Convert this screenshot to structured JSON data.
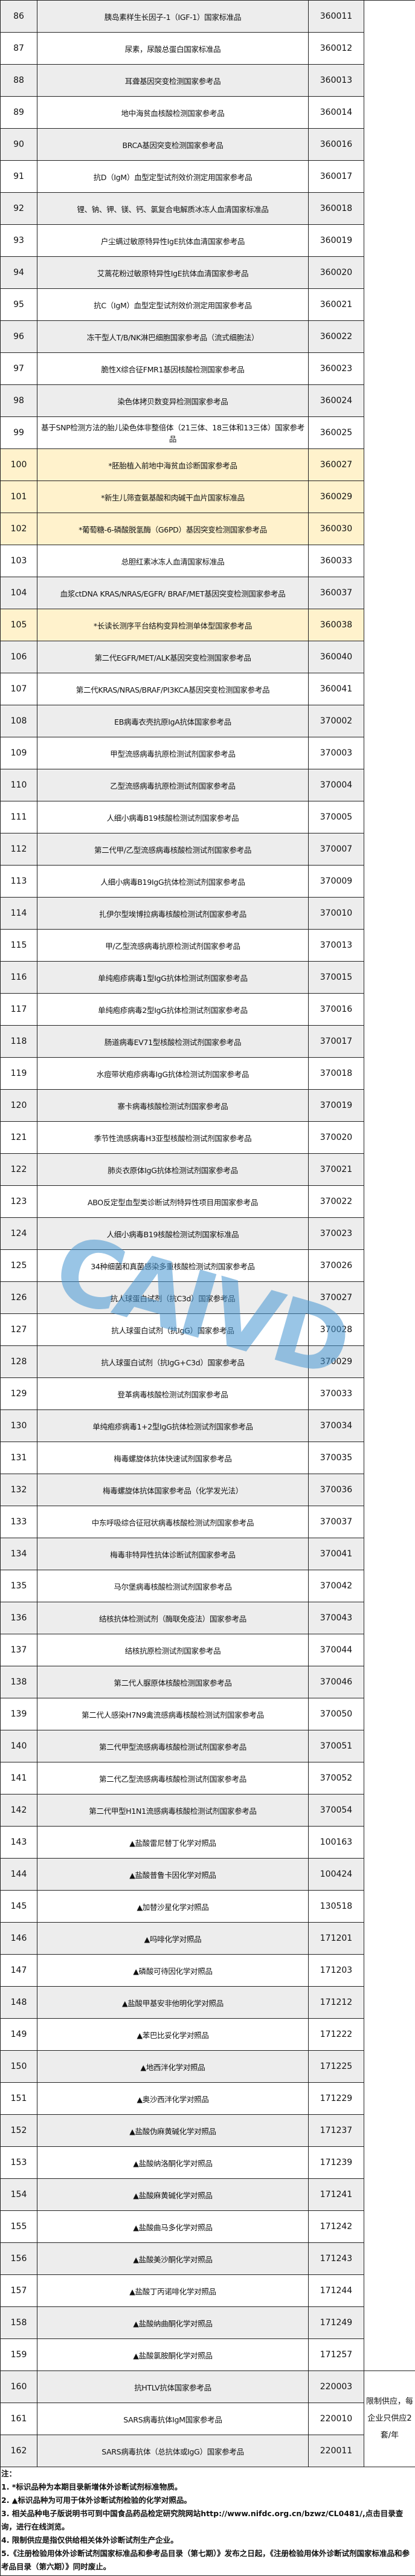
{
  "table": {
    "rows": [
      {
        "no": "86",
        "name": "胰岛素样生长因子-1（IGF-1）国家标准品",
        "code": "360011"
      },
      {
        "no": "87",
        "name": "尿素，尿酸总蛋白国家标准品",
        "code": "360012"
      },
      {
        "no": "88",
        "name": "耳聋基因突变检测国家参考品",
        "code": "360013"
      },
      {
        "no": "89",
        "name": "地中海贫血核酸检测国家参考品",
        "code": "360014"
      },
      {
        "no": "90",
        "name": "BRCA基因突变检测国家参考品",
        "code": "360016"
      },
      {
        "no": "91",
        "name": "抗D（IgM）血型定型试剂效价测定用国家参考品",
        "code": "360017"
      },
      {
        "no": "92",
        "name": "锂、钠、钾、镁、钙、氯复合电解质冰冻人血清国家标准品",
        "code": "360018"
      },
      {
        "no": "93",
        "name": "户尘螨过敏原特异性IgE抗体血清国家参考品",
        "code": "360019"
      },
      {
        "no": "94",
        "name": "艾蒿花粉过敏原特异性IgE抗体血清国家参考品",
        "code": "360020"
      },
      {
        "no": "95",
        "name": "抗C（IgM）血型定型试剂效价测定用国家参考品",
        "code": "360021"
      },
      {
        "no": "96",
        "name": "冻干型人T/B/NK淋巴细胞国家参考品（流式细胞法）",
        "code": "360022"
      },
      {
        "no": "97",
        "name": "脆性X综合征FMR1基因核酸检测国家参考品",
        "code": "360023"
      },
      {
        "no": "98",
        "name": "染色体拷贝数变异检测国家参考品",
        "code": "360024"
      },
      {
        "no": "99",
        "name": "基于SNP检测方法的胎儿染色体非整倍体（21三体、18三体和13三体）国家参考品",
        "code": "360025"
      },
      {
        "no": "100",
        "name": "*胚胎植入前地中海贫血诊断国家参考品",
        "code": "360027",
        "highlight": true
      },
      {
        "no": "101",
        "name": "*新生儿筛查氨基酸和肉碱干血片国家标准品",
        "code": "360029",
        "highlight": true
      },
      {
        "no": "102",
        "name": "*葡萄糖-6-磷酸脱氢酶（G6PD）基因突变检测国家参考品",
        "code": "360030",
        "highlight": true
      },
      {
        "no": "103",
        "name": "总胆红素冰冻人血清国家标准品",
        "code": "360033"
      },
      {
        "no": "104",
        "name": "血浆ctDNA KRAS/NRAS/EGFR/ BRAF/MET基因突变检测国家参考品",
        "code": "360037"
      },
      {
        "no": "105",
        "name": "*长读长测序平台结构变异检测单体型国家参考品",
        "code": "360038",
        "highlight": true
      },
      {
        "no": "106",
        "name": "第二代EGFR/MET/ALK基因突变检测国家参考品",
        "code": "360040"
      },
      {
        "no": "107",
        "name": "第二代KRAS/NRAS/BRAF/PI3KCA基因突变检测国家参考品",
        "code": "360041"
      },
      {
        "no": "108",
        "name": "EB病毒衣壳抗原IgA抗体国家参考品",
        "code": "370002"
      },
      {
        "no": "109",
        "name": "甲型流感病毒抗原检测试剂国家参考品",
        "code": "370003"
      },
      {
        "no": "110",
        "name": "乙型流感病毒抗原检测试剂国家参考品",
        "code": "370004"
      },
      {
        "no": "111",
        "name": "人细小病毒B19核酸检测试剂国家参考品",
        "code": "370005"
      },
      {
        "no": "112",
        "name": "第二代甲/乙型流感病毒核酸检测试剂国家参考品",
        "code": "370007"
      },
      {
        "no": "113",
        "name": "人细小病毒B19IgG抗体检测试剂国家参考品",
        "code": "370009"
      },
      {
        "no": "114",
        "name": "扎伊尔型埃博拉病毒核酸检测试剂国家参考品",
        "code": "370010"
      },
      {
        "no": "115",
        "name": "甲/乙型流感病毒抗原检测试剂国家参考品",
        "code": "370013"
      },
      {
        "no": "116",
        "name": "单纯疱疹病毒1型IgG抗体检测试剂国家参考品",
        "code": "370015"
      },
      {
        "no": "117",
        "name": "单纯疱疹病毒2型IgG抗体检测试剂国家参考品",
        "code": "370016"
      },
      {
        "no": "118",
        "name": "肠道病毒EV71型核酸检测试剂国家参考品",
        "code": "370017"
      },
      {
        "no": "119",
        "name": "水痘带状疱疹病毒IgG抗体检测试剂国家参考品",
        "code": "370018"
      },
      {
        "no": "120",
        "name": "寨卡病毒核酸检测试剂国家参考品",
        "code": "370019"
      },
      {
        "no": "121",
        "name": "季节性流感病毒H3亚型核酸检测试剂国家参考品",
        "code": "370020"
      },
      {
        "no": "122",
        "name": "肺炎衣原体IgG抗体检测试剂国家参考品",
        "code": "370021"
      },
      {
        "no": "123",
        "name": "ABO反定型血型类诊断试剂特异性项目用国家参考品",
        "code": "370022"
      },
      {
        "no": "124",
        "name": "人细小病毒B19核酸检测试剂国家标准品",
        "code": "370023"
      },
      {
        "no": "125",
        "name": "34种细菌和真菌感染多重核酸检测试剂国家参考品",
        "code": "370026"
      },
      {
        "no": "126",
        "name": "抗人球蛋白试剂（抗C3d）国家参考品",
        "code": "370027"
      },
      {
        "no": "127",
        "name": "抗人球蛋白试剂（抗IgG）国家参考品",
        "code": "370028"
      },
      {
        "no": "128",
        "name": "抗人球蛋白试剂（抗IgG+C3d）国家参考品",
        "code": "370029"
      },
      {
        "no": "129",
        "name": "登革病毒核酸检测试剂国家参考品",
        "code": "370033"
      },
      {
        "no": "130",
        "name": "单纯疱疹病毒1+2型IgG抗体检测试剂国家参考品",
        "code": "370034"
      },
      {
        "no": "131",
        "name": "梅毒螺旋体抗体快速试剂国家参考品",
        "code": "370035"
      },
      {
        "no": "132",
        "name": "梅毒螺旋体抗体国家参考品（化学发光法）",
        "code": "370036"
      },
      {
        "no": "133",
        "name": "中东呼吸综合征冠状病毒核酸检测试剂国家参考品",
        "code": "370037"
      },
      {
        "no": "134",
        "name": "梅毒非特异性抗体诊断试剂国家参考品",
        "code": "370041"
      },
      {
        "no": "135",
        "name": "马尔堡病毒核酸检测试剂国家参考品",
        "code": "370042"
      },
      {
        "no": "136",
        "name": "结核抗体检测试剂（酶联免疫法）国家参考品",
        "code": "370043"
      },
      {
        "no": "137",
        "name": "结核抗原检测试剂国家参考品",
        "code": "370044"
      },
      {
        "no": "138",
        "name": "第二代人脲原体核酸检测国家参考品",
        "code": "370046"
      },
      {
        "no": "139",
        "name": "第二代人感染H7N9禽流感病毒核酸检测试剂国家参考品",
        "code": "370050"
      },
      {
        "no": "140",
        "name": "第二代甲型流感病毒核酸检测试剂国家参考品",
        "code": "370051"
      },
      {
        "no": "141",
        "name": "第二代乙型流感病毒核酸检测试剂国家参考品",
        "code": "370052"
      },
      {
        "no": "142",
        "name": "第二代甲型H1N1流感病毒核酸检测试剂国家参考品",
        "code": "370054"
      },
      {
        "no": "143",
        "name": "▲盐酸雷尼替丁化学对照品",
        "code": "100163"
      },
      {
        "no": "144",
        "name": "▲盐酸普鲁卡因化学对照品",
        "code": "100424"
      },
      {
        "no": "145",
        "name": "▲加替沙星化学对照品",
        "code": "130518"
      },
      {
        "no": "146",
        "name": "▲吗啡化学对照品",
        "code": "171201"
      },
      {
        "no": "147",
        "name": "▲磷酸可待因化学对照品",
        "code": "171203"
      },
      {
        "no": "148",
        "name": "▲盐酸甲基安非他明化学对照品",
        "code": "171212"
      },
      {
        "no": "149",
        "name": "▲苯巴比妥化学对照品",
        "code": "171222"
      },
      {
        "no": "150",
        "name": "▲地西泮化学对照品",
        "code": "171225"
      },
      {
        "no": "151",
        "name": "▲奥沙西泮化学对照品",
        "code": "171229"
      },
      {
        "no": "152",
        "name": "▲盐酸伪麻黄碱化学对照品",
        "code": "171237"
      },
      {
        "no": "153",
        "name": "▲盐酸纳洛酮化学对照品",
        "code": "171239"
      },
      {
        "no": "154",
        "name": "▲盐酸麻黄碱化学对照品",
        "code": "171241"
      },
      {
        "no": "155",
        "name": "▲盐酸曲马多化学对照品",
        "code": "171242"
      },
      {
        "no": "156",
        "name": "▲盐酸美沙酮化学对照品",
        "code": "171243"
      },
      {
        "no": "157",
        "name": "▲盐酸丁丙诺啡化学对照品",
        "code": "171244"
      },
      {
        "no": "158",
        "name": "▲盐酸纳曲酮化学对照品",
        "code": "171249"
      },
      {
        "no": "159",
        "name": "▲盐酸氯胺酮化学对照品",
        "code": "171257"
      },
      {
        "no": "160",
        "name": "抗HTLV抗体国家参考品",
        "code": "220003"
      },
      {
        "no": "161",
        "name": "SARS病毒抗体IgM国家参考品",
        "code": "220010"
      },
      {
        "no": "162",
        "name": "SARS病毒抗体（总抗体或IgG）国家参考品",
        "code": "220011"
      }
    ],
    "remark_restricted": "限制供应，每企业只供应2套/年"
  },
  "notes": {
    "title": "注：",
    "items": [
      "1. *标识品种为本期目录新增体外诊断试剂标准物质。",
      "2. ▲标识品种为可用于体外诊断试剂检验的化学对照品。",
      "3. 相关品种电子版说明书可到中国食品药品检定研究院网站http://www.nifdc.org.cn/bzwz/CL0481/,点击目录查询，进行在线浏览。",
      "4. 限制供应是指仅供给相关体外诊断试剂生产企业。",
      "5.《注册检验用体外诊断试剂国家标准品和参考品目录（第七期）》发布之日起，《注册检验用体外诊断试剂国家标准品和参考品目录（第六期）》同时废止。"
    ]
  },
  "watermark": "CAIVD",
  "colors": {
    "grey_row": "#ededed",
    "new_item_highlight": "#fff2cc",
    "watermark": "#4696d2"
  }
}
